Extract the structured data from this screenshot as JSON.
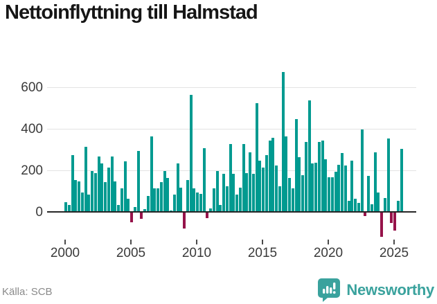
{
  "title": "Nettoinflyttning till Halmstad",
  "source": "Källa: SCB",
  "brand": {
    "name": "Newsworthy"
  },
  "colors": {
    "positive": "#009A90",
    "negative": "#96134A",
    "brand": "#3AA29D",
    "axis": "#262626",
    "grid": "#E3E3E3",
    "text": "#3A3A3A"
  },
  "chart_data": {
    "type": "bar",
    "title": "Nettoinflyttning till Halmstad",
    "x_unit": "quarter",
    "x_start": "2000 Q1",
    "x_end": "2025 Q3",
    "x_ticks": [
      2000,
      2005,
      2010,
      2015,
      2020,
      2025
    ],
    "y_ticks": [
      0,
      200,
      400,
      600
    ],
    "ylim": [
      -150,
      700
    ],
    "grid": true,
    "legend": false,
    "series": [
      {
        "name": "Nettoinflyttning",
        "values": [
          45,
          30,
          270,
          150,
          145,
          90,
          310,
          80,
          195,
          185,
          265,
          230,
          140,
          210,
          265,
          145,
          30,
          110,
          240,
          60,
          -45,
          20,
          290,
          -30,
          10,
          75,
          360,
          110,
          110,
          140,
          195,
          160,
          5,
          80,
          230,
          115,
          -75,
          150,
          560,
          110,
          90,
          85,
          305,
          -25,
          15,
          110,
          195,
          30,
          180,
          120,
          325,
          180,
          80,
          115,
          325,
          185,
          285,
          180,
          520,
          245,
          210,
          270,
          340,
          355,
          220,
          120,
          670,
          360,
          160,
          110,
          445,
          260,
          175,
          335,
          535,
          230,
          235,
          335,
          340,
          250,
          165,
          165,
          190,
          225,
          280,
          220,
          50,
          245,
          60,
          40,
          395,
          -15,
          170,
          35,
          285,
          90,
          -115,
          65,
          350,
          -50,
          -85,
          50,
          300
        ]
      }
    ]
  }
}
